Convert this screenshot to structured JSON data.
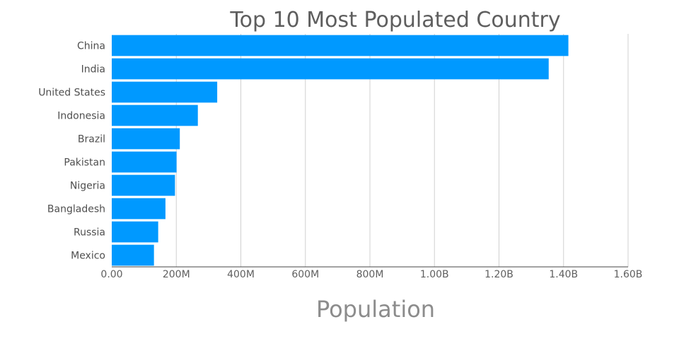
{
  "chart_data": {
    "type": "bar",
    "orientation": "horizontal",
    "title": "Top 10 Most Populated Country",
    "xlabel": "Population",
    "ylabel": "",
    "categories": [
      "China",
      "India",
      "United States",
      "Indonesia",
      "Brazil",
      "Pakistan",
      "Nigeria",
      "Bangladesh",
      "Russia",
      "Mexico"
    ],
    "values": [
      1415000000,
      1354000000,
      326800000,
      266800000,
      210900000,
      200800000,
      195900000,
      166400000,
      143900000,
      130800000
    ],
    "xlim": [
      0,
      1600000000
    ],
    "xticks": [
      0,
      200000000,
      400000000,
      600000000,
      800000000,
      1000000000,
      1200000000,
      1400000000,
      1600000000
    ],
    "xtick_labels": [
      "0.00",
      "200M",
      "400M",
      "600M",
      "800M",
      "1.00B",
      "1.20B",
      "1.40B",
      "1.60B"
    ],
    "grid": true,
    "bar_color": "#0099ff"
  }
}
